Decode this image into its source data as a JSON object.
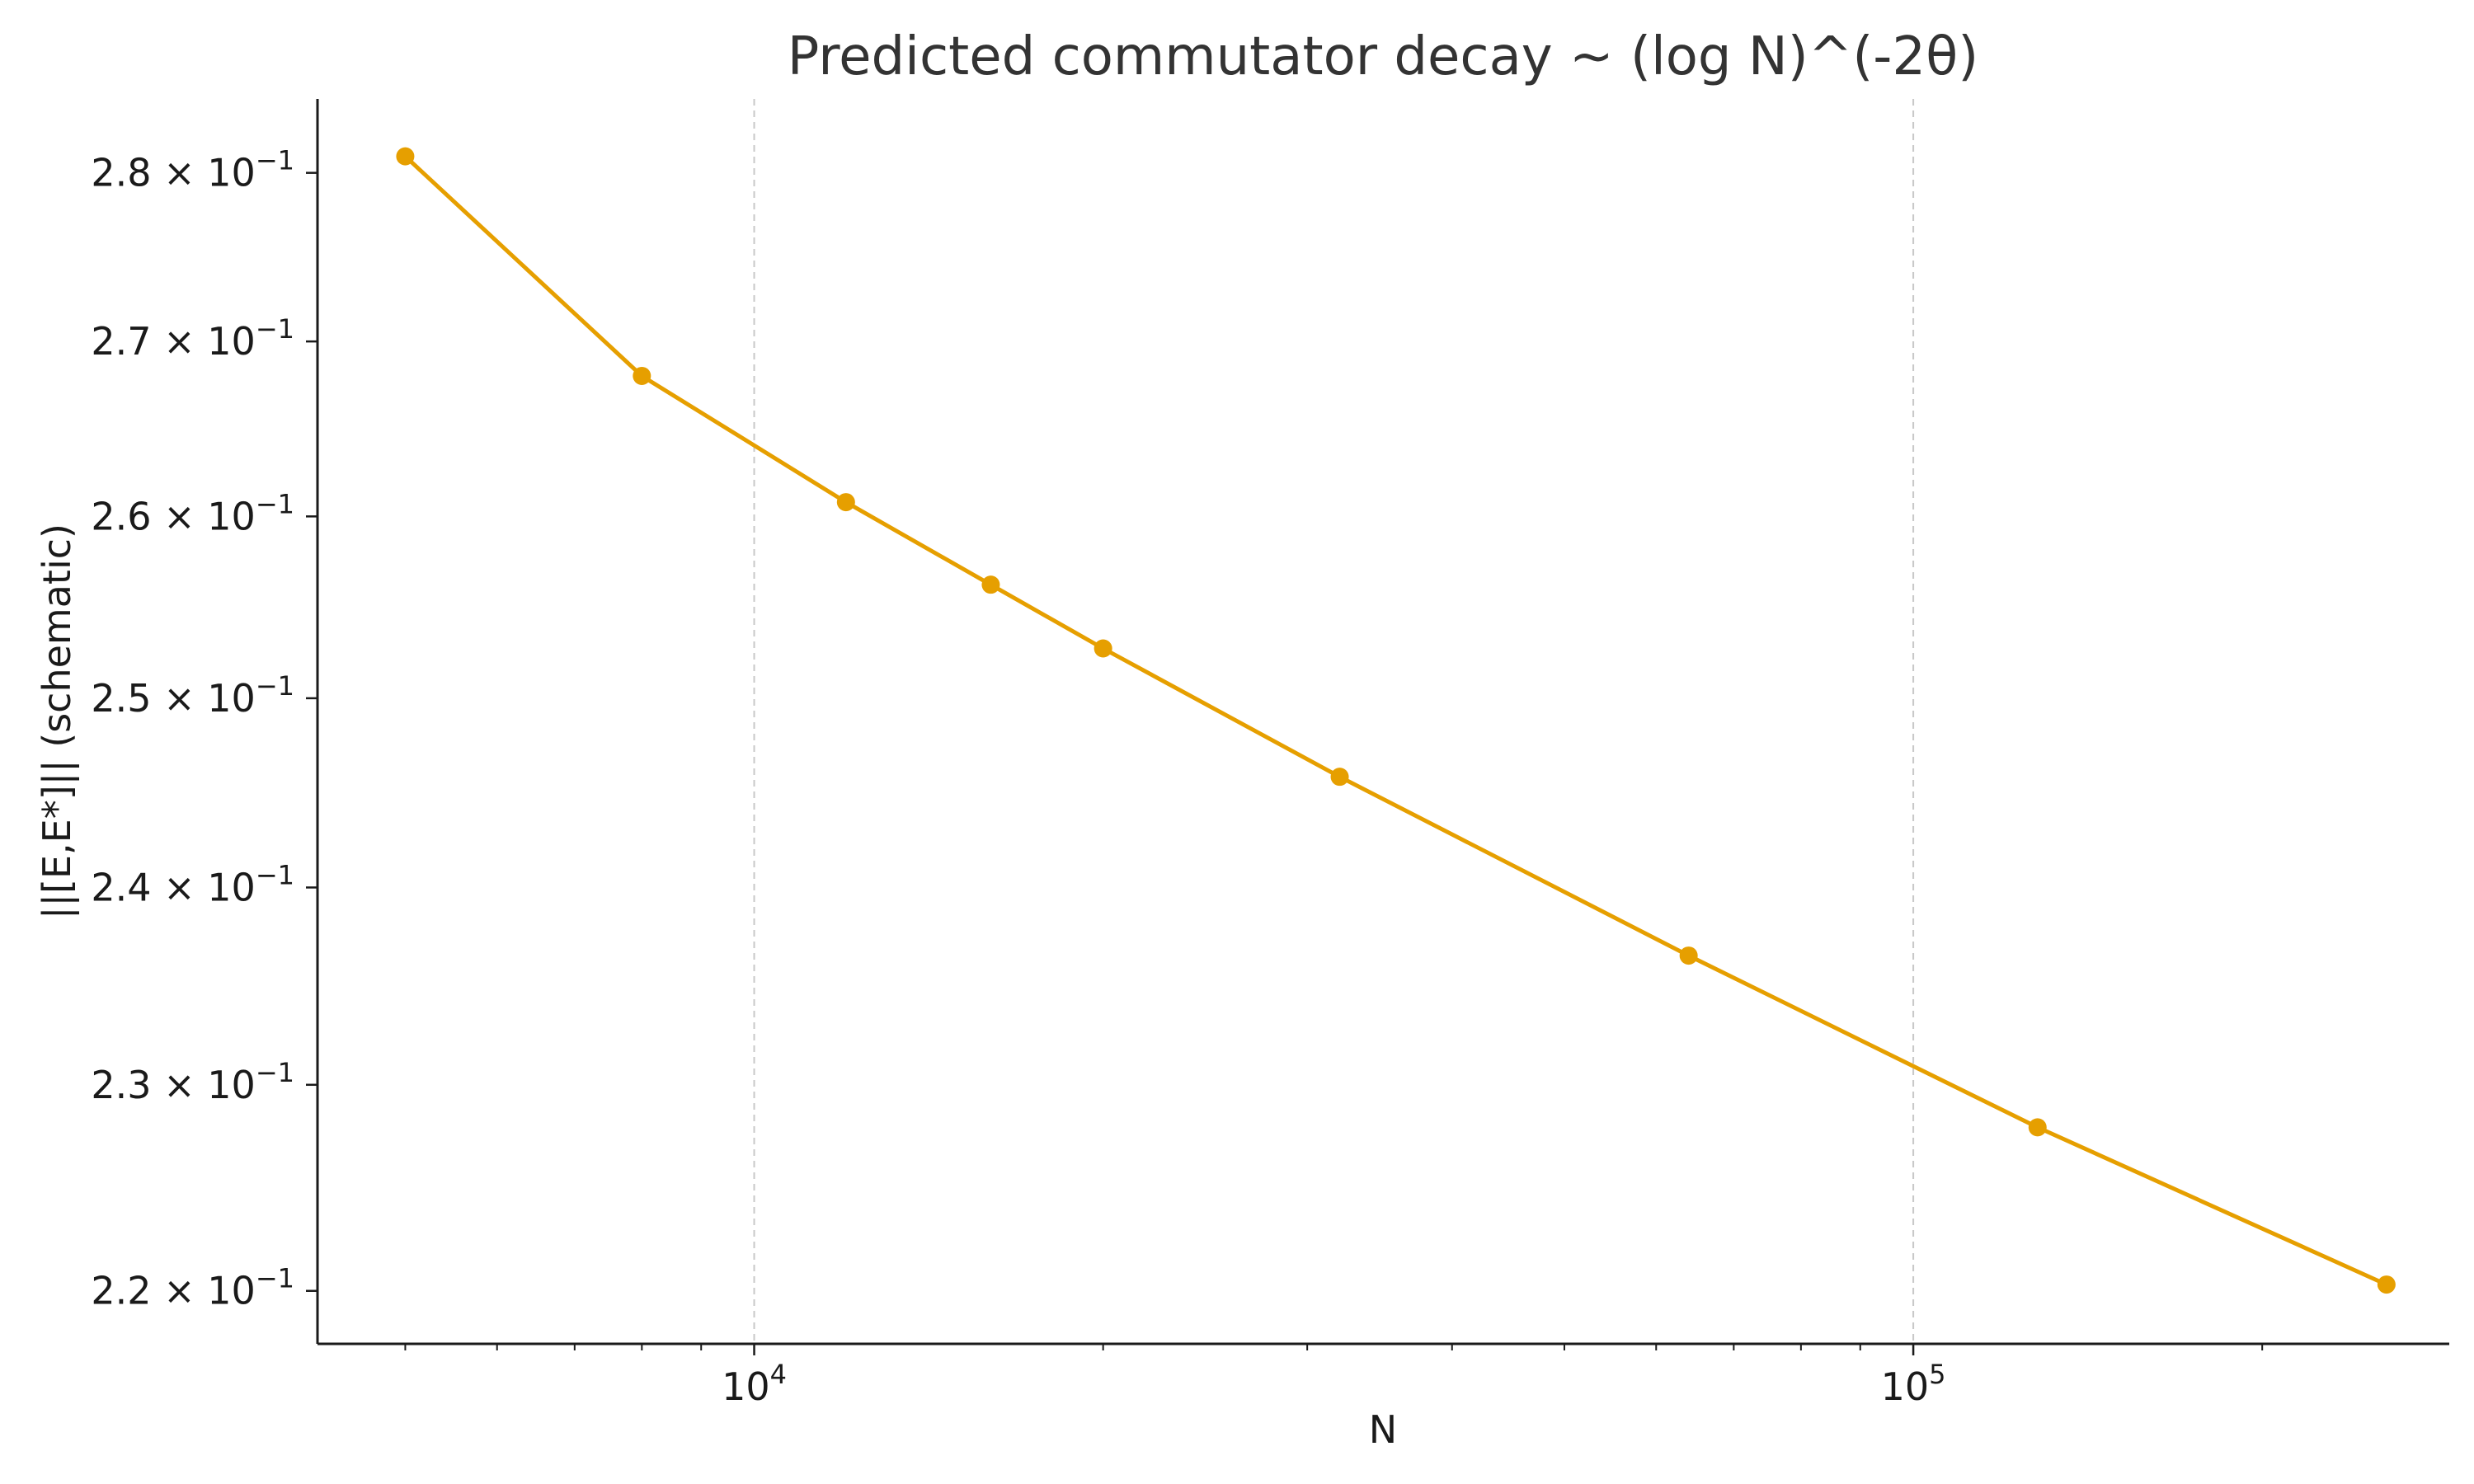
{
  "chart_data": {
    "type": "line",
    "title": "Predicted commutator decay ~ (log N)^(-2θ)",
    "xlabel": "N",
    "ylabel": "||[E,E*]||  (schematic)",
    "x_scale": "log",
    "y_scale": "log",
    "xlim": [
      4200,
      290000
    ],
    "ylim": [
      0.2175,
      0.2845
    ],
    "x_tick_labels": [
      {
        "base": "10",
        "exp": "4",
        "value": 10000
      },
      {
        "base": "10",
        "exp": "5",
        "value": 100000
      }
    ],
    "y_tick_labels": [
      {
        "mantissa": "2.2",
        "times": "×",
        "base": "10",
        "exp": "−1",
        "value": 0.22
      },
      {
        "mantissa": "2.3",
        "times": "×",
        "base": "10",
        "exp": "−1",
        "value": 0.23
      },
      {
        "mantissa": "2.4",
        "times": "×",
        "base": "10",
        "exp": "−1",
        "value": 0.24
      },
      {
        "mantissa": "2.5",
        "times": "×",
        "base": "10",
        "exp": "−1",
        "value": 0.25
      },
      {
        "mantissa": "2.6",
        "times": "×",
        "base": "10",
        "exp": "−1",
        "value": 0.26
      },
      {
        "mantissa": "2.7",
        "times": "×",
        "base": "10",
        "exp": "−1",
        "value": 0.27
      },
      {
        "mantissa": "2.8",
        "times": "×",
        "base": "10",
        "exp": "−1",
        "value": 0.28
      }
    ],
    "grid": {
      "x_major": true,
      "y": false,
      "style": "dashed"
    },
    "legend": "none",
    "series": [
      {
        "color": "#E69F00",
        "points": [
          {
            "x": 5000,
            "y": 0.281
          },
          {
            "x": 8000,
            "y": 0.268
          },
          {
            "x": 12000,
            "y": 0.2608
          },
          {
            "x": 16000,
            "y": 0.2562
          },
          {
            "x": 20000,
            "y": 0.2527
          },
          {
            "x": 32000,
            "y": 0.2458
          },
          {
            "x": 64000,
            "y": 0.2365
          },
          {
            "x": 128000,
            "y": 0.2279
          },
          {
            "x": 256000,
            "y": 0.2203
          }
        ]
      }
    ]
  }
}
